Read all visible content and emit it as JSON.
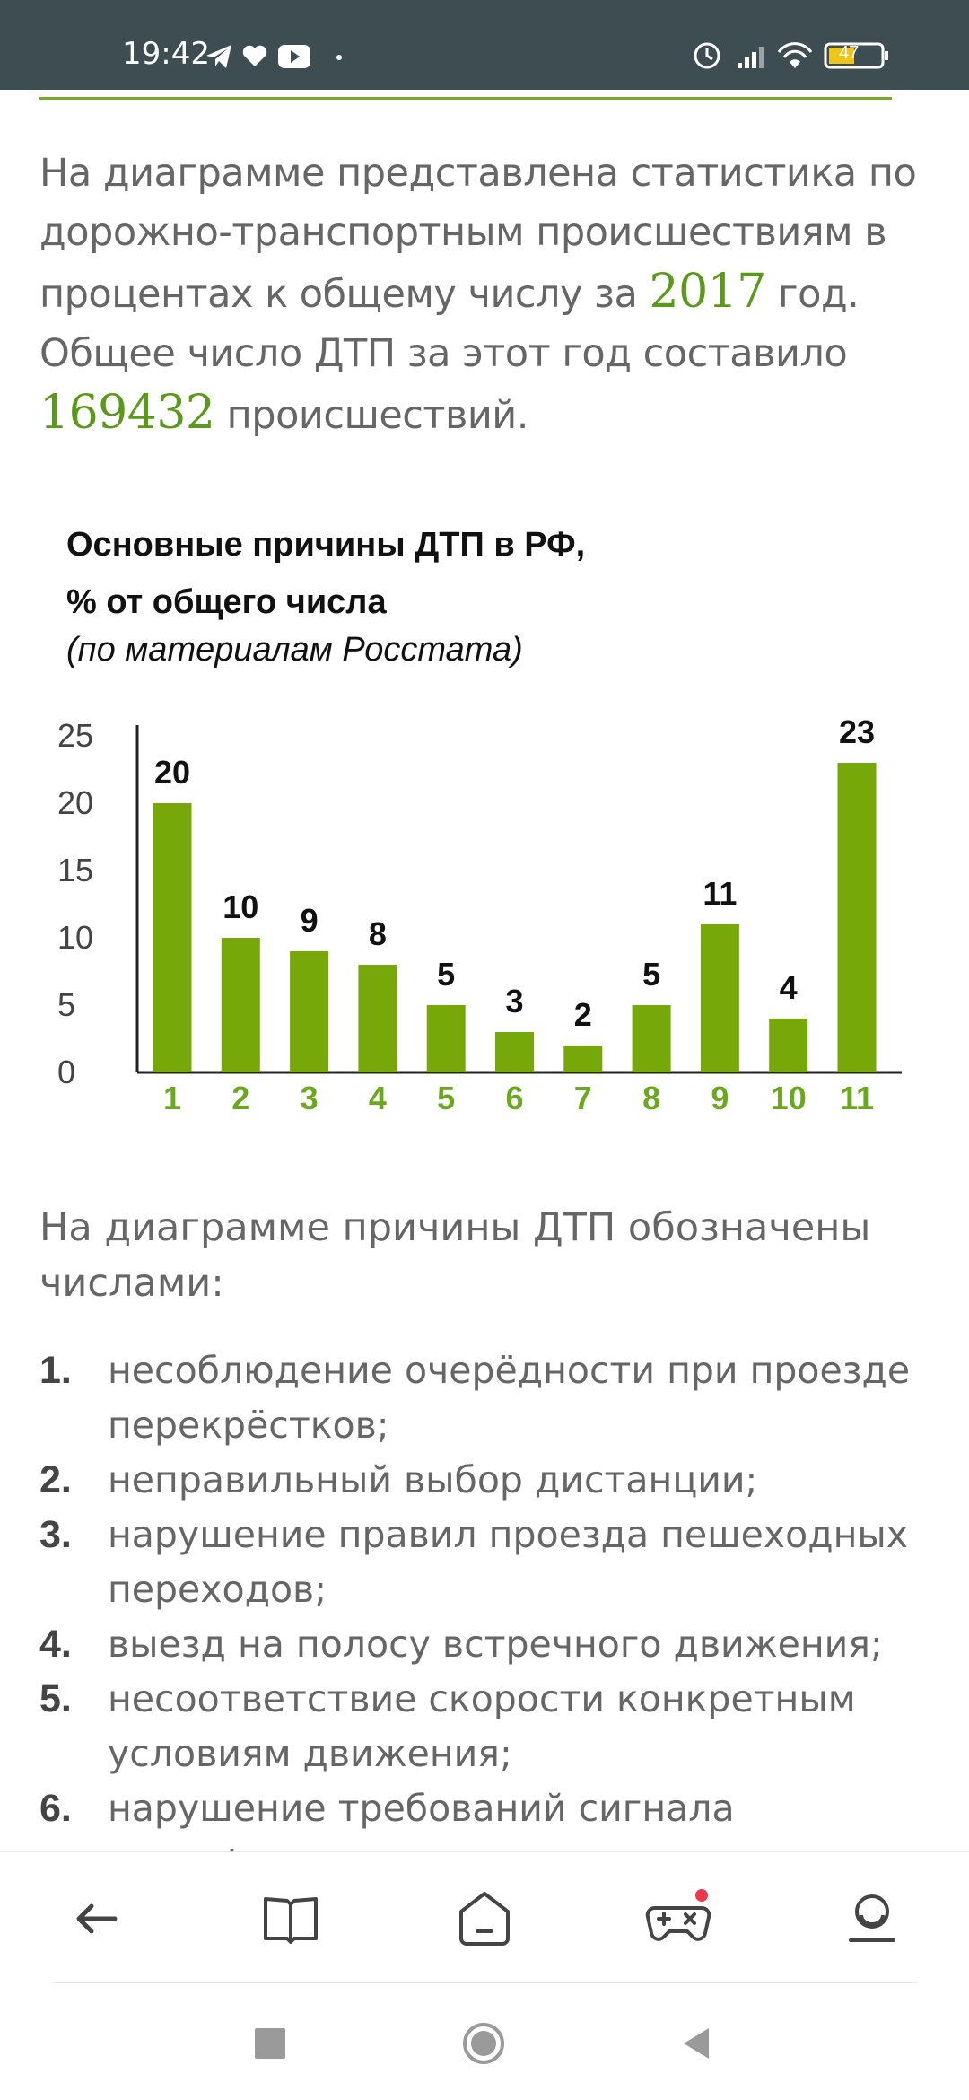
{
  "status_bar": {
    "time": "19:42",
    "battery": "47"
  },
  "intro": {
    "part1": "На диаграмме представлена статистика по дорожно-транспортным происшествиям в процентах к общему числу за ",
    "year": "2017",
    "part2": " год. Общее число ДТП за этот год составило ",
    "total": "169432",
    "part3": " происшествий."
  },
  "chart_data": {
    "type": "bar",
    "title": "Основные причины ДТП в РФ,",
    "title_line2": "% от общего числа",
    "subtitle": "(по материалам Росстата)",
    "categories": [
      "1",
      "2",
      "3",
      "4",
      "5",
      "6",
      "7",
      "8",
      "9",
      "10",
      "11"
    ],
    "values": [
      20,
      10,
      9,
      8,
      5,
      3,
      2,
      5,
      11,
      4,
      23
    ],
    "yticks": [
      "0",
      "5",
      "10",
      "15",
      "20",
      "25"
    ],
    "ylim": [
      0,
      25
    ],
    "bar_color": "#77a80a",
    "category_color": "#6aa81e",
    "grid": false
  },
  "legend_intro": "На диаграмме причины ДТП обозначены числами:",
  "reasons": [
    {
      "num": "1.",
      "text": "несоблюдение очерёдности при проезде перекрёстков;"
    },
    {
      "num": "2.",
      "text": "неправильный выбор дистанции;"
    },
    {
      "num": "3.",
      "text": "нарушение правил проезда пешеходных переходов;"
    },
    {
      "num": "4.",
      "text": "выезд на полосу встречного движения;"
    },
    {
      "num": "5.",
      "text": "несоответствие скорости конкретным условиям движения;"
    },
    {
      "num": "6.",
      "text": "нарушение требований сигнала светофора;"
    }
  ],
  "bottom_nav": {
    "items": [
      {
        "icon": "back-arrow-icon"
      },
      {
        "icon": "book-icon"
      },
      {
        "icon": "home-icon"
      },
      {
        "icon": "gamepad-icon"
      },
      {
        "icon": "profile-icon"
      }
    ]
  },
  "colors": {
    "accent": "#77a82a",
    "status_bar": "#3e4d52",
    "text": "#666666"
  }
}
